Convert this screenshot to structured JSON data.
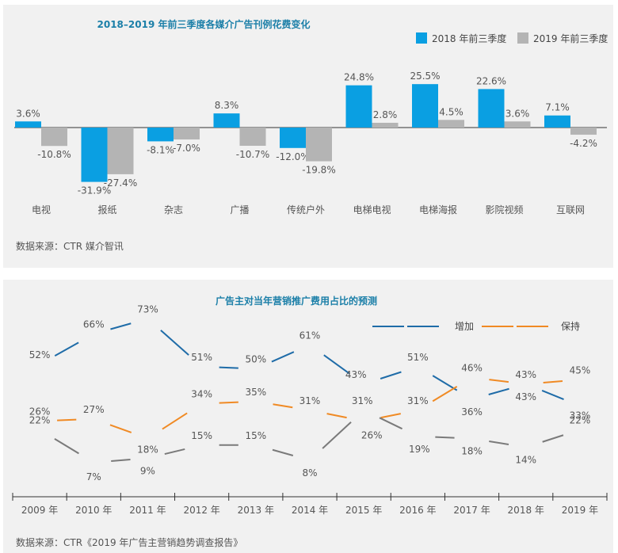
{
  "chart_data": [
    {
      "type": "bar",
      "title": "2018–2019 年前三季度各媒介广告刊例花费变化",
      "categories": [
        "电视",
        "报纸",
        "杂志",
        "广播",
        "传统户外",
        "电梯电视",
        "电梯海报",
        "影院视频",
        "互联网"
      ],
      "series": [
        {
          "name": "2018 年前三季度",
          "color": "#0a9fe2",
          "values": [
            3.6,
            -31.9,
            -8.1,
            8.3,
            -12.0,
            24.8,
            25.5,
            22.6,
            7.1
          ],
          "labels": [
            "3.6%",
            "-31.9%",
            "-8.1%",
            "8.3%",
            "-12.0%",
            "24.8%",
            "25.5%",
            "22.6%",
            "7.1%"
          ]
        },
        {
          "name": "2019 年前三季度",
          "color": "#b4b4b4",
          "values": [
            -10.8,
            -27.4,
            -7.0,
            -10.7,
            -19.8,
            2.8,
            4.5,
            3.6,
            -4.2
          ],
          "labels": [
            "-10.8%",
            "-27.4%",
            "-7.0%",
            "-10.7%",
            "-19.8%",
            "2.8%",
            "4.5%",
            "3.6%",
            "-4.2%"
          ]
        }
      ],
      "source": "数据来源：CTR 媒介智讯",
      "legend": "top-right"
    },
    {
      "type": "line",
      "title": "广告主对当年营销推广费用占比的预测",
      "categories": [
        "2009 年",
        "2010 年",
        "2011 年",
        "2012 年",
        "2013 年",
        "2014 年",
        "2015 年",
        "2016 年",
        "2017 年",
        "2018 年",
        "2019 年"
      ],
      "series": [
        {
          "name": "增加",
          "color": "#1f6ca8",
          "values": [
            52,
            66,
            73,
            51,
            50,
            61,
            43,
            51,
            36,
            43,
            33
          ],
          "labels": [
            "52%",
            "66%",
            "73%",
            "51%",
            "50%",
            "61%",
            "43%",
            "51%",
            "36%",
            "43%",
            "33%"
          ]
        },
        {
          "name": "保持",
          "color": "#f08a24",
          "values": [
            26,
            27,
            18,
            34,
            35,
            31,
            26,
            31,
            46,
            43,
            45
          ],
          "labels": [
            "26%",
            "27%",
            "18%",
            "34%",
            "35%",
            "31%",
            "26%",
            "31%",
            "46%",
            "43%",
            "45%"
          ]
        },
        {
          "name": "",
          "color": "#7a7a7a",
          "values": [
            22,
            7,
            9,
            15,
            15,
            8,
            31,
            19,
            18,
            14,
            22
          ],
          "labels": [
            "22%",
            "7%",
            "9%",
            "15%",
            "15%",
            "8%",
            "31%",
            "19%",
            "18%",
            "14%",
            "22%"
          ]
        }
      ],
      "source": "数据来源：CTR《2019 年广告主营销趋势调查报告》",
      "legend": "top-right"
    }
  ]
}
